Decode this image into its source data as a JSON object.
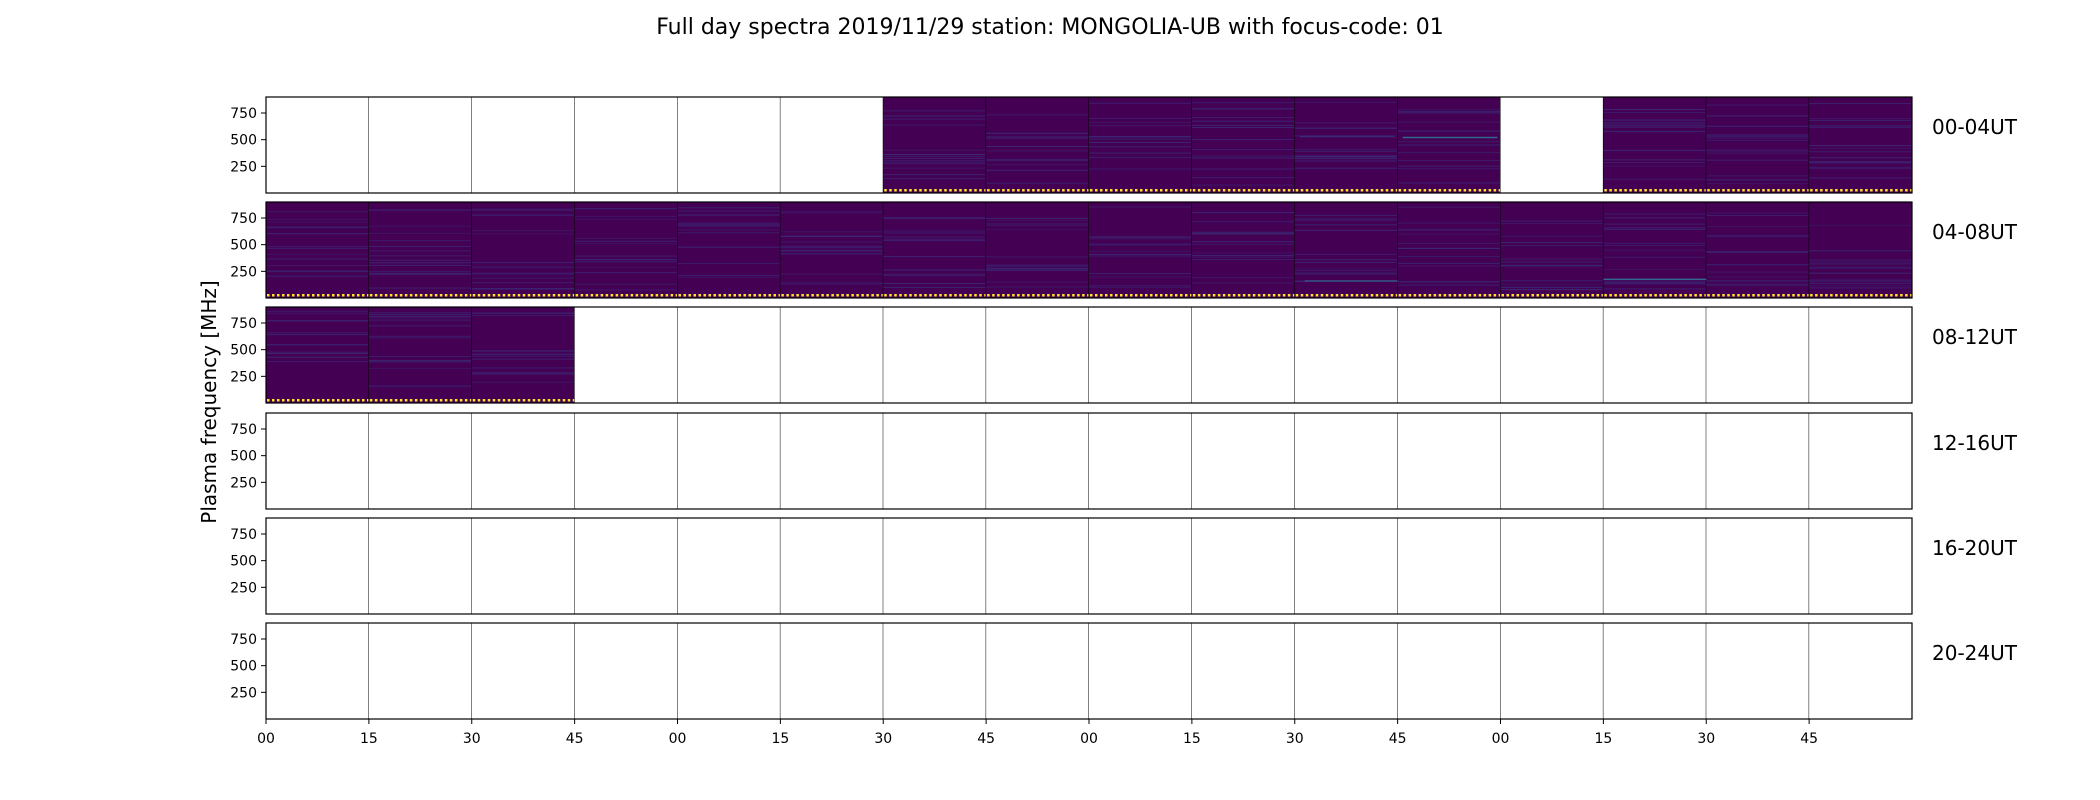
{
  "chart_data": {
    "type": "heatmap",
    "title": "Full day spectra 2019/11/29 station: MONGOLIA-UB with focus-code: 01",
    "ylabel": "Plasma frequency [MHz]",
    "xlabel": "",
    "y_ticks": [
      "750",
      "500",
      "250"
    ],
    "y_tick_values": [
      750,
      500,
      250
    ],
    "ylim": [
      0,
      900
    ],
    "x_ticks": [
      "00",
      "15",
      "30",
      "45",
      "00",
      "15",
      "30",
      "45",
      "00",
      "15",
      "30",
      "45",
      "00",
      "15",
      "30",
      "45"
    ],
    "rows": [
      {
        "label": "00-04UT",
        "filled": [
          0,
          0,
          0,
          0,
          0,
          0,
          1,
          1,
          1,
          1,
          1,
          1,
          0,
          1,
          1,
          1
        ]
      },
      {
        "label": "04-08UT",
        "filled": [
          1,
          1,
          1,
          1,
          1,
          1,
          1,
          1,
          1,
          1,
          1,
          1,
          1,
          1,
          1,
          1
        ]
      },
      {
        "label": "08-12UT",
        "filled": [
          1,
          1,
          1,
          0,
          0,
          0,
          0,
          0,
          0,
          0,
          0,
          0,
          0,
          0,
          0,
          0
        ]
      },
      {
        "label": "12-16UT",
        "filled": [
          0,
          0,
          0,
          0,
          0,
          0,
          0,
          0,
          0,
          0,
          0,
          0,
          0,
          0,
          0,
          0
        ]
      },
      {
        "label": "16-20UT",
        "filled": [
          0,
          0,
          0,
          0,
          0,
          0,
          0,
          0,
          0,
          0,
          0,
          0,
          0,
          0,
          0,
          0
        ]
      },
      {
        "label": "20-24UT",
        "filled": [
          0,
          0,
          0,
          0,
          0,
          0,
          0,
          0,
          0,
          0,
          0,
          0,
          0,
          0,
          0,
          0
        ]
      }
    ],
    "colormap": {
      "background": "#440154",
      "band": "#3b2a77",
      "trace": "#31688e",
      "baseline": "#fde725"
    }
  }
}
